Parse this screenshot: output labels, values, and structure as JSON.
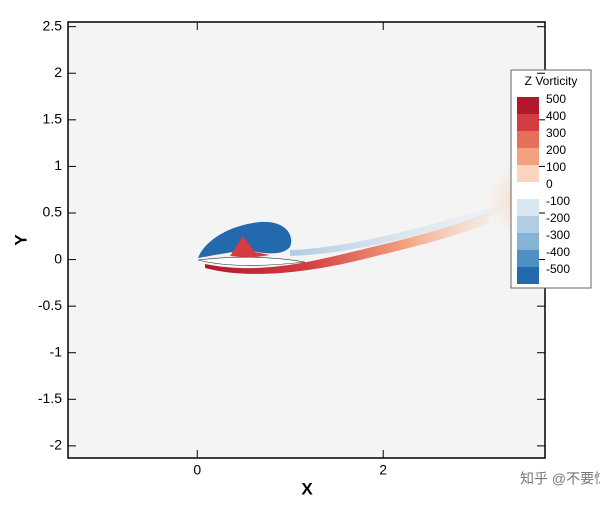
{
  "chart_data": {
    "type": "contour",
    "xlabel": "X",
    "ylabel": "Y",
    "xlim": [
      -1.39,
      3.74
    ],
    "ylim": [
      -2.13,
      2.55
    ],
    "xticks": [
      0,
      2
    ],
    "yticks": [
      2.5,
      2,
      1.5,
      1,
      0.5,
      0,
      -0.5,
      -1,
      -1.5,
      -2
    ],
    "colorbar": {
      "title": "Z Vorticity",
      "levels": [
        500,
        400,
        300,
        200,
        100,
        0,
        -100,
        -200,
        -300,
        -400,
        -500
      ],
      "colors": [
        "#b2182b",
        "#d33c40",
        "#e5705a",
        "#f3a17f",
        "#fbd4c0",
        "#ffffff",
        "#d9e7f2",
        "#b1cde4",
        "#84b3d6",
        "#4f8fc4",
        "#2369ad"
      ]
    }
  },
  "watermark": "知乎 @不要惊讶"
}
